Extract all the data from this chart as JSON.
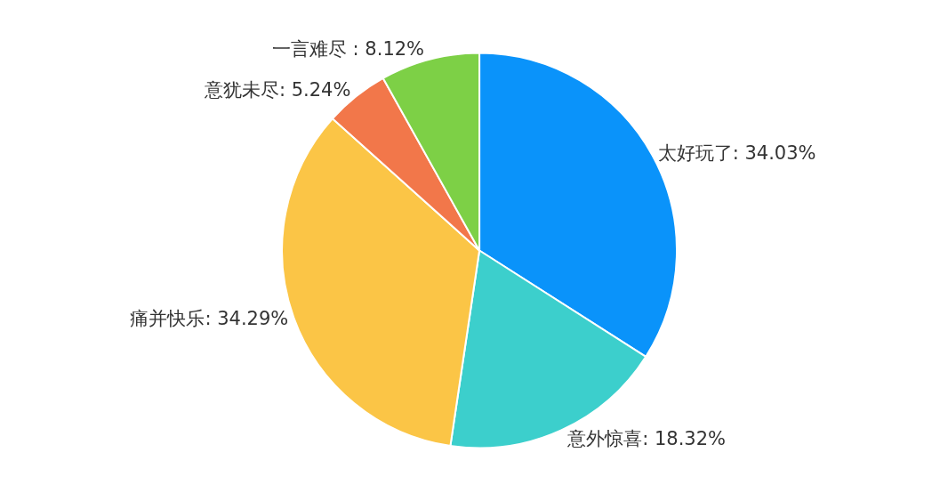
{
  "chart_data": {
    "type": "pie",
    "categories": [
      "太好玩了",
      "意外惊喜",
      "痛并快乐",
      "意犹未尽",
      "一言难尽"
    ],
    "values": [
      34.03,
      18.32,
      34.29,
      5.24,
      8.12
    ],
    "colors": [
      "#0a93fa",
      "#3ccfcc",
      "#fbc546",
      "#f2774a",
      "#7dd046"
    ],
    "value_labels": [
      ": 34.03%",
      ": 18.32%",
      ": 34.29%",
      ": 5.24%",
      " : 8.12%"
    ],
    "legend": false
  }
}
